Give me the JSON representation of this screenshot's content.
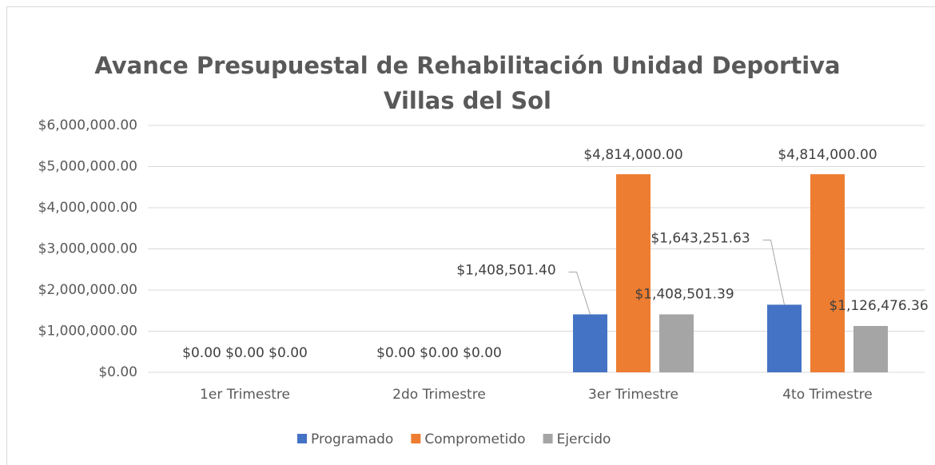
{
  "chart_data": {
    "type": "bar",
    "title": [
      "Avance Presupuestal de Rehabilitación Unidad Deportiva",
      "Villas del Sol"
    ],
    "categories": [
      "1er Trimestre",
      "2do Trimestre",
      "3er Trimestre",
      "4to Trimestre"
    ],
    "series": [
      {
        "name": "Programado",
        "color": "#4472c4",
        "values": [
          0,
          0,
          1408501.4,
          1643251.63
        ],
        "value_labels": [
          "$0.00",
          "$0.00",
          "$1,408,501.40",
          "$1,643,251.63"
        ]
      },
      {
        "name": "Comprometido",
        "color": "#ed7d31",
        "values": [
          0,
          0,
          4814000,
          4814000
        ],
        "value_labels": [
          "$0.00",
          "$0.00",
          "$4,814,000.00",
          "$4,814,000.00"
        ]
      },
      {
        "name": "Ejercido",
        "color": "#a5a5a5",
        "values": [
          0,
          0,
          1408501.39,
          1126476.36
        ],
        "value_labels": [
          "$0.00",
          "$0.00",
          "$1,408,501.39",
          "$1,126,476.36"
        ]
      }
    ],
    "ylim": [
      0,
      6000000
    ],
    "yticks": [
      {
        "value": 0,
        "label": "$0.00"
      },
      {
        "value": 1000000,
        "label": "$1,000,000.00"
      },
      {
        "value": 2000000,
        "label": "$2,000,000.00"
      },
      {
        "value": 3000000,
        "label": "$3,000,000.00"
      },
      {
        "value": 4000000,
        "label": "$4,000,000.00"
      },
      {
        "value": 5000000,
        "label": "$5,000,000.00"
      },
      {
        "value": 6000000,
        "label": "$6,000,000.00"
      }
    ],
    "grid": true,
    "legend": "bottom"
  }
}
